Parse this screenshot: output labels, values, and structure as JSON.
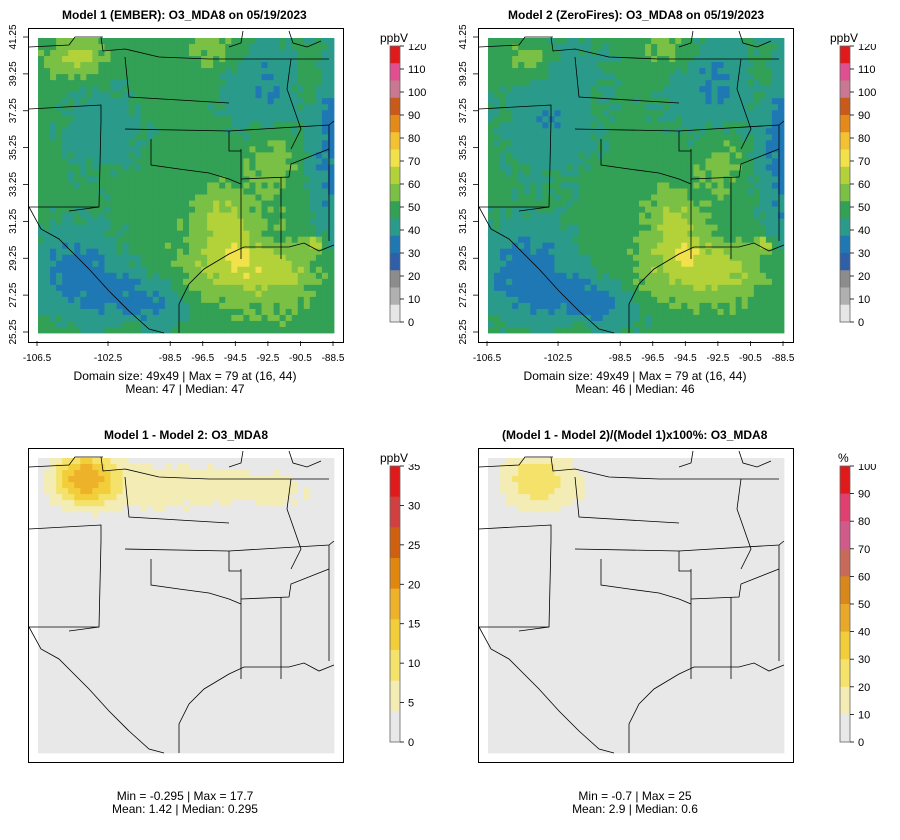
{
  "palettes": {
    "abs": [
      "#e6e6e6",
      "#b0b0b0",
      "#8c8c8c",
      "#2f5fa8",
      "#1f78b4",
      "#2a9a8a",
      "#32a055",
      "#7ac044",
      "#b3d23a",
      "#f1e14a",
      "#f2c232",
      "#e38a1a",
      "#c85a1a",
      "#c87890",
      "#e05090",
      "#e01a1a"
    ],
    "diff": [
      "#e8e8e8",
      "#f3ecb5",
      "#f4e26a",
      "#f2cf3a",
      "#eeb22a",
      "#e0870f",
      "#cf6010",
      "#d04040",
      "#e01a1a"
    ],
    "pct": [
      "#e8e8e8",
      "#f3ecb5",
      "#f4e26a",
      "#f2cf3a",
      "#e8a82a",
      "#d8881a",
      "#c86a5a",
      "#d05a8a",
      "#e04070",
      "#e01a1a"
    ]
  },
  "panels": [
    {
      "id": "p1",
      "title": "Model 1 (EMBER): O3_MDA8 on 05/19/2023",
      "unit": "ppbV",
      "palette": "abs",
      "colorbar_ticks": [
        "120",
        "110",
        "100",
        "90",
        "80",
        "70",
        "60",
        "50",
        "40",
        "30",
        "20",
        "10",
        "0"
      ],
      "show_axes": true,
      "stat_line1": "Domain size: 49x49 | Max = 79 at (16, 44)",
      "stat_line2": "Mean: 47 |  Median: 47",
      "map": {
        "mean": 47,
        "max": 79
      }
    },
    {
      "id": "p2",
      "title": "Model 2 (ZeroFires): O3_MDA8 on 05/19/2023",
      "unit": "ppbV",
      "palette": "abs",
      "colorbar_ticks": [
        "120",
        "110",
        "100",
        "90",
        "80",
        "70",
        "60",
        "50",
        "40",
        "30",
        "20",
        "10",
        "0"
      ],
      "show_axes": true,
      "stat_line1": "Domain size: 49x49 | Max = 79 at (16, 44)",
      "stat_line2": "Mean: 46 |  Median: 46",
      "map": {
        "mean": 46,
        "max": 79
      }
    },
    {
      "id": "p3",
      "title": "Model 1 - Model 2: O3_MDA8",
      "unit": "ppbV",
      "palette": "diff",
      "colorbar_ticks": [
        "35",
        "30",
        "25",
        "20",
        "15",
        "10",
        "5",
        "0"
      ],
      "show_axes": false,
      "stat_line1": "Min = -0.295 | Max = 17.7",
      "stat_line2": "Mean: 1.42 |  Median: 0.295",
      "map": {
        "min": -0.295,
        "max": 17.7
      }
    },
    {
      "id": "p4",
      "title": "(Model 1 - Model 2)/(Model 1)x100%: O3_MDA8",
      "unit": "%",
      "palette": "pct",
      "colorbar_ticks": [
        "100",
        "90",
        "80",
        "70",
        "60",
        "50",
        "40",
        "30",
        "20",
        "10",
        "0"
      ],
      "show_axes": false,
      "stat_line1": "Min = -0.7 | Max = 25",
      "stat_line2": "Mean: 2.9 |  Median: 0.6",
      "map": {
        "min": -0.7,
        "max": 25
      }
    }
  ],
  "axes": {
    "x_ticks": [
      "-106.5",
      "-102.5",
      "-98.5",
      "-96.5",
      "-94.5",
      "-92.5",
      "-90.5",
      "-88.5"
    ],
    "y_ticks": [
      "41.25",
      "39.25",
      "37.25",
      "35.25",
      "33.25",
      "31.25",
      "29.25",
      "27.25",
      "25.25"
    ]
  },
  "chart_data": [
    {
      "type": "heatmap",
      "title": "Model 1 (EMBER): O3_MDA8 on 05/19/2023",
      "unit": "ppbV",
      "grid": "49x49",
      "max": 79,
      "max_at": [
        16,
        44
      ],
      "mean": 47,
      "median": 47,
      "colorbar_range": [
        0,
        120
      ],
      "x_ticks": [
        -106.5,
        -102.5,
        -98.5,
        -96.5,
        -94.5,
        -92.5,
        -90.5,
        -88.5
      ],
      "y_ticks": [
        41.25,
        39.25,
        37.25,
        35.25,
        33.25,
        31.25,
        29.25,
        27.25,
        25.25
      ]
    },
    {
      "type": "heatmap",
      "title": "Model 2 (ZeroFires): O3_MDA8 on 05/19/2023",
      "unit": "ppbV",
      "grid": "49x49",
      "max": 79,
      "max_at": [
        16,
        44
      ],
      "mean": 46,
      "median": 46,
      "colorbar_range": [
        0,
        120
      ],
      "x_ticks": [
        -106.5,
        -102.5,
        -98.5,
        -96.5,
        -94.5,
        -92.5,
        -90.5,
        -88.5
      ],
      "y_ticks": [
        41.25,
        39.25,
        37.25,
        35.25,
        33.25,
        31.25,
        29.25,
        27.25,
        25.25
      ]
    },
    {
      "type": "heatmap",
      "title": "Model 1 - Model 2: O3_MDA8",
      "unit": "ppbV",
      "min": -0.295,
      "max": 17.7,
      "mean": 1.42,
      "median": 0.295,
      "colorbar_range": [
        0,
        35
      ]
    },
    {
      "type": "heatmap",
      "title": "(Model 1 - Model 2)/(Model 1)x100%: O3_MDA8",
      "unit": "%",
      "min": -0.7,
      "max": 25,
      "mean": 2.9,
      "median": 0.6,
      "colorbar_range": [
        0,
        100
      ]
    }
  ]
}
